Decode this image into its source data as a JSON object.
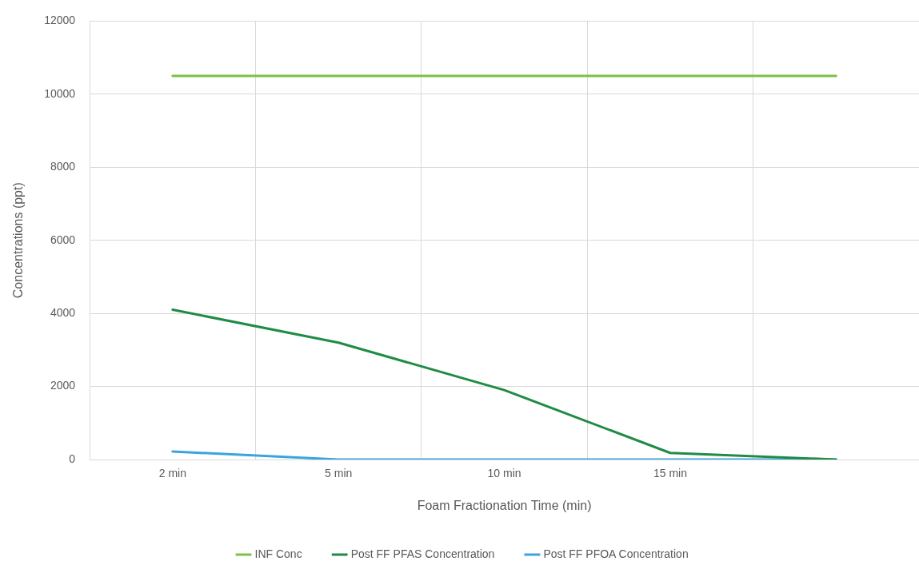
{
  "chart_data": {
    "type": "line",
    "xlabel": "Foam Fractionation Time (min)",
    "ylabel": "Concentrations (ppt)",
    "categories": [
      "2 min",
      "5 min",
      "10 min",
      "15 min",
      null
    ],
    "series": [
      {
        "name": "INF Conc",
        "color": "#7cc143",
        "values": [
          10500,
          10500,
          10500,
          10500,
          10500
        ]
      },
      {
        "name": "Post FF PFAS Concentration",
        "color": "#1f8b45",
        "values": [
          4100,
          3200,
          1900,
          180,
          0
        ]
      },
      {
        "name": "Post FF PFOA Concentration",
        "color": "#39a4dd",
        "values": [
          220,
          0,
          0,
          0,
          0
        ]
      }
    ],
    "ylim": [
      0,
      12000
    ],
    "yticks": [
      0,
      2000,
      4000,
      6000,
      8000,
      10000,
      12000
    ],
    "grid": true,
    "legend": "bottom",
    "marker": "none"
  }
}
